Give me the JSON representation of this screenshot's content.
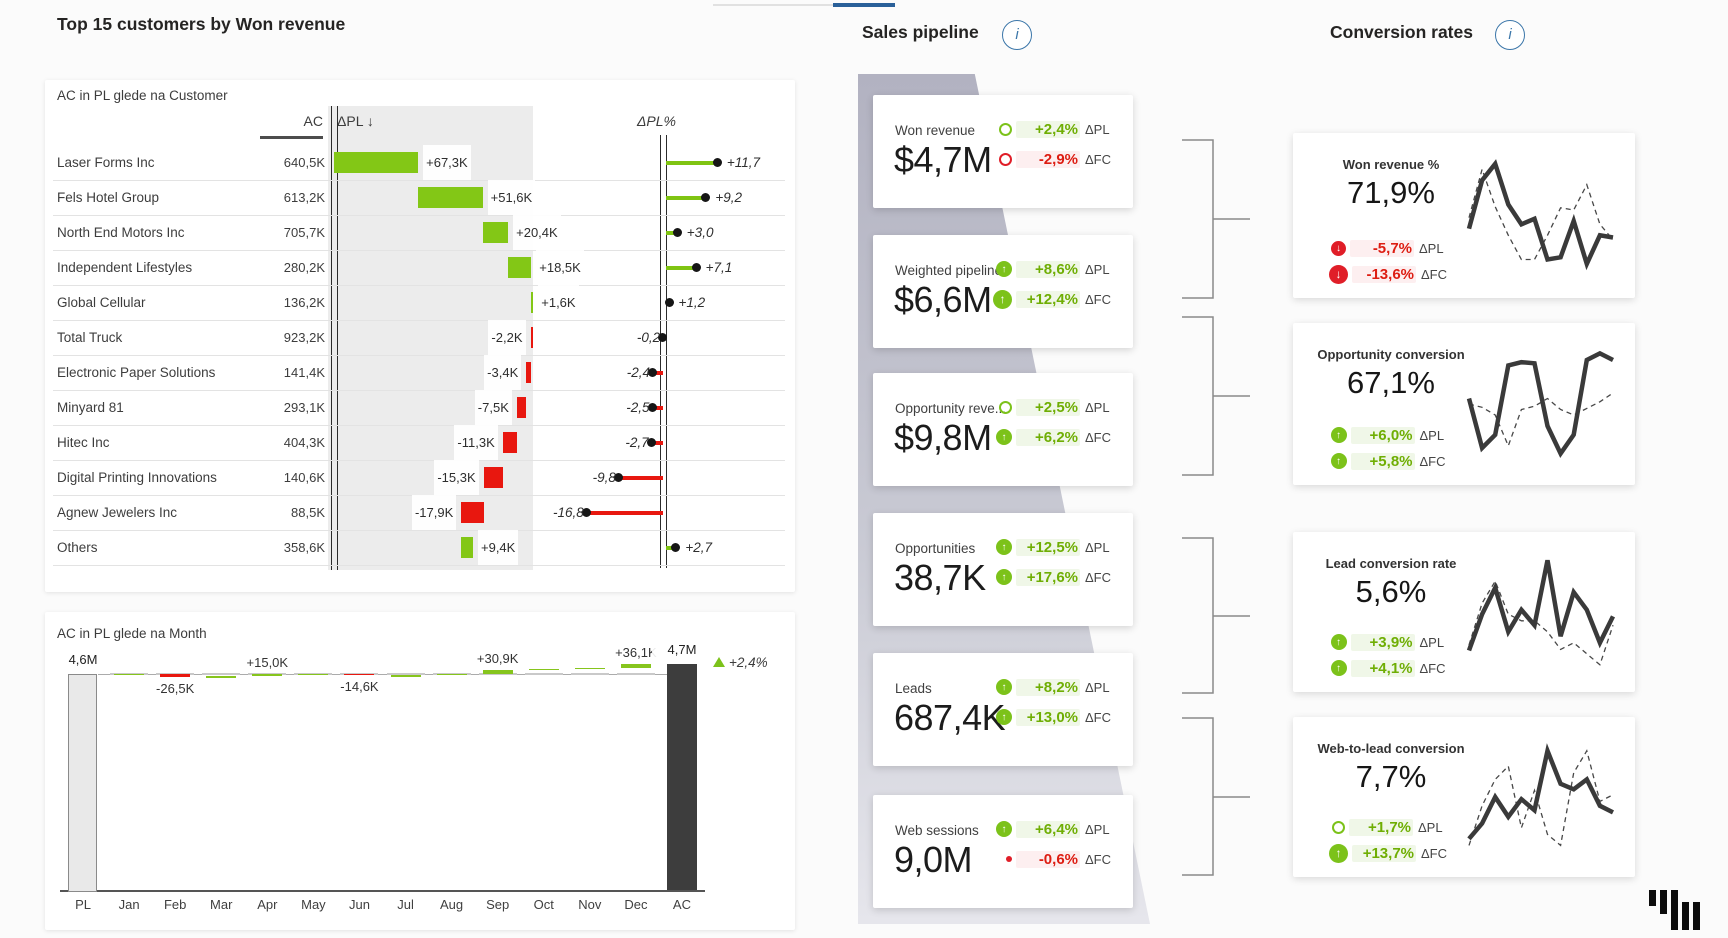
{
  "delta_labels": {
    "pl": "ΔPL",
    "fc": "ΔFC"
  },
  "colors": {
    "green": "#7cc21a",
    "red": "#e0231c",
    "dark_bar": "#3d3d3d",
    "light_bar": "#e9e9e9",
    "accent_blue": "#3b76a9",
    "funnel_gray": "#b2b2c1"
  },
  "left": {
    "title": "Top 15 customers by Won revenue",
    "customer_chart": {
      "subtitle": "AC in PL glede na Customer",
      "col_ac": "AC",
      "col_dpl": "ΔPL ↓",
      "col_dplpct": "ΔPL%",
      "rows": [
        {
          "name": "Laser Forms Inc",
          "ac": "640,5K",
          "dpl_label": "+67,3K",
          "dpl": 67.3,
          "pct_label": "+11,7",
          "pct": 11.7
        },
        {
          "name": "Fels Hotel Group",
          "ac": "613,2K",
          "dpl_label": "+51,6K",
          "dpl": 51.6,
          "pct_label": "+9,2",
          "pct": 9.2
        },
        {
          "name": "North End Motors Inc",
          "ac": "705,7K",
          "dpl_label": "+20,4K",
          "dpl": 20.4,
          "pct_label": "+3,0",
          "pct": 3.0
        },
        {
          "name": "Independent Lifestyles",
          "ac": "280,2K",
          "dpl_label": "+18,5K",
          "dpl": 18.5,
          "pct_label": "+7,1",
          "pct": 7.1
        },
        {
          "name": "Global Cellular",
          "ac": "136,2K",
          "dpl_label": "+1,6K",
          "dpl": 1.6,
          "pct_label": "+1,2",
          "pct": 1.2
        },
        {
          "name": "Total Truck",
          "ac": "923,2K",
          "dpl_label": "-2,2K",
          "dpl": -2.2,
          "pct_label": "-0,2",
          "pct": -0.2
        },
        {
          "name": "Electronic Paper Solutions",
          "ac": "141,4K",
          "dpl_label": "-3,4K",
          "dpl": -3.4,
          "pct_label": "-2,4",
          "pct": -2.4
        },
        {
          "name": "Minyard 81",
          "ac": "293,1K",
          "dpl_label": "-7,5K",
          "dpl": -7.5,
          "pct_label": "-2,5",
          "pct": -2.5
        },
        {
          "name": "Hitec Inc",
          "ac": "404,3K",
          "dpl_label": "-11,3K",
          "dpl": -11.3,
          "pct_label": "-2,7",
          "pct": -2.7
        },
        {
          "name": "Digital Printing Innovations",
          "ac": "140,6K",
          "dpl_label": "-15,3K",
          "dpl": -15.3,
          "pct_label": "-9,8",
          "pct": -9.8
        },
        {
          "name": "Agnew Jewelers Inc",
          "ac": "88,5K",
          "dpl_label": "-17,9K",
          "dpl": -17.9,
          "pct_label": "-16,8",
          "pct": -16.8
        },
        {
          "name": "Others",
          "ac": "358,6K",
          "dpl_label": "+9,4K",
          "dpl": 9.4,
          "pct_label": "+2,7",
          "pct": 2.7
        }
      ]
    },
    "month_chart": {
      "subtitle": "AC in PL glede na Month",
      "start": {
        "label": "PL",
        "value_label": "4,6M",
        "value": 4600
      },
      "end": {
        "label": "AC",
        "value_label": "4,7M",
        "value": 4700
      },
      "total_delta_label": "+2,4%",
      "months": [
        {
          "label": "Jan",
          "delta": 4,
          "delta_label": ""
        },
        {
          "label": "Feb",
          "delta": -26.5,
          "delta_label": "-26,5K"
        },
        {
          "label": "Mar",
          "delta": 6,
          "delta_label": ""
        },
        {
          "label": "Apr",
          "delta": 15.0,
          "delta_label": "+15,0K"
        },
        {
          "label": "May",
          "delta": 5,
          "delta_label": ""
        },
        {
          "label": "Jun",
          "delta": -14.6,
          "delta_label": "-14,6K"
        },
        {
          "label": "Jul",
          "delta": 3,
          "delta_label": ""
        },
        {
          "label": "Aug",
          "delta": 12,
          "delta_label": ""
        },
        {
          "label": "Sep",
          "delta": 30.9,
          "delta_label": "+30,9K"
        },
        {
          "label": "Oct",
          "delta": 8,
          "delta_label": ""
        },
        {
          "label": "Nov",
          "delta": 8,
          "delta_label": ""
        },
        {
          "label": "Dec",
          "delta": 36.1,
          "delta_label": "+36,1K"
        }
      ]
    }
  },
  "pipeline": {
    "title": "Sales pipeline",
    "cards": [
      {
        "label": "Won revenue",
        "value": "$4,7M",
        "pl": {
          "text": "+2,4%",
          "badge": "ring-green",
          "tone": "green"
        },
        "fc": {
          "text": "-2,9%",
          "badge": "ring-red",
          "tone": "red"
        }
      },
      {
        "label": "Weighted pipeline",
        "value": "$6,6M",
        "pl": {
          "text": "+8,6%",
          "badge": "up-green",
          "tone": "green"
        },
        "fc": {
          "text": "+12,4%",
          "badge": "up-green-lg",
          "tone": "green"
        }
      },
      {
        "label": "Opportunity reve...",
        "value": "$9,8M",
        "pl": {
          "text": "+2,5%",
          "badge": "ring-green",
          "tone": "green"
        },
        "fc": {
          "text": "+6,2%",
          "badge": "up-green",
          "tone": "green"
        }
      },
      {
        "label": "Opportunities",
        "value": "38,7K",
        "pl": {
          "text": "+12,5%",
          "badge": "up-green",
          "tone": "green"
        },
        "fc": {
          "text": "+17,6%",
          "badge": "up-green",
          "tone": "green"
        }
      },
      {
        "label": "Leads",
        "value": "687,4K",
        "pl": {
          "text": "+8,2%",
          "badge": "up-green",
          "tone": "green"
        },
        "fc": {
          "text": "+13,0%",
          "badge": "up-green",
          "tone": "green"
        }
      },
      {
        "label": "Web sessions",
        "value": "9,0M",
        "pl": {
          "text": "+6,4%",
          "badge": "up-green",
          "tone": "green"
        },
        "fc": {
          "text": "-0,6%",
          "badge": "tiny-red",
          "tone": "red"
        }
      }
    ]
  },
  "conversions": {
    "title": "Conversion rates",
    "cards": [
      {
        "label": "Won revenue %",
        "value": "71,9%",
        "pl": {
          "text": "-5,7%",
          "badge": "down-red",
          "tone": "red"
        },
        "fc": {
          "text": "-13,6%",
          "badge": "down-red-lg",
          "tone": "red"
        },
        "spark": {
          "ac": [
            38,
            82,
            97,
            60,
            42,
            47,
            10,
            12,
            45,
            6,
            32,
            30
          ],
          "pl": [
            48,
            92,
            58,
            32,
            10,
            10,
            32,
            57,
            55,
            78,
            42,
            28
          ]
        }
      },
      {
        "label": "Opportunity conversion",
        "value": "67,1%",
        "pl": {
          "text": "+6,0%",
          "badge": "up-green",
          "tone": "green"
        },
        "fc": {
          "text": "+5,8%",
          "badge": "up-green",
          "tone": "green"
        },
        "spark": {
          "ac": [
            55,
            10,
            22,
            85,
            88,
            87,
            30,
            5,
            22,
            90,
            96,
            90
          ],
          "pl": [
            50,
            47,
            40,
            12,
            45,
            48,
            55,
            45,
            40,
            46,
            52,
            60
          ]
        }
      },
      {
        "label": "Lead conversion rate",
        "value": "5,6%",
        "pl": {
          "text": "+3,9%",
          "badge": "up-green",
          "tone": "green"
        },
        "fc": {
          "text": "+4,1%",
          "badge": "up-green",
          "tone": "green"
        },
        "spark": {
          "ac": [
            15,
            48,
            72,
            32,
            52,
            38,
            97,
            28,
            68,
            52,
            22,
            46
          ],
          "pl": [
            20,
            58,
            78,
            48,
            42,
            42,
            32,
            16,
            22,
            12,
            2,
            38
          ]
        }
      },
      {
        "label": "Web-to-lead conversion",
        "value": "7,7%",
        "pl": {
          "text": "+1,7%",
          "badge": "ring-green",
          "tone": "green"
        },
        "fc": {
          "text": "+13,7%",
          "badge": "up-green-lg",
          "tone": "green"
        },
        "spark": {
          "ac": [
            12,
            26,
            50,
            32,
            48,
            38,
            92,
            62,
            57,
            66,
            42,
            36
          ],
          "pl": [
            6,
            42,
            66,
            78,
            22,
            56,
            16,
            6,
            72,
            92,
            46,
            52
          ]
        }
      }
    ]
  }
}
